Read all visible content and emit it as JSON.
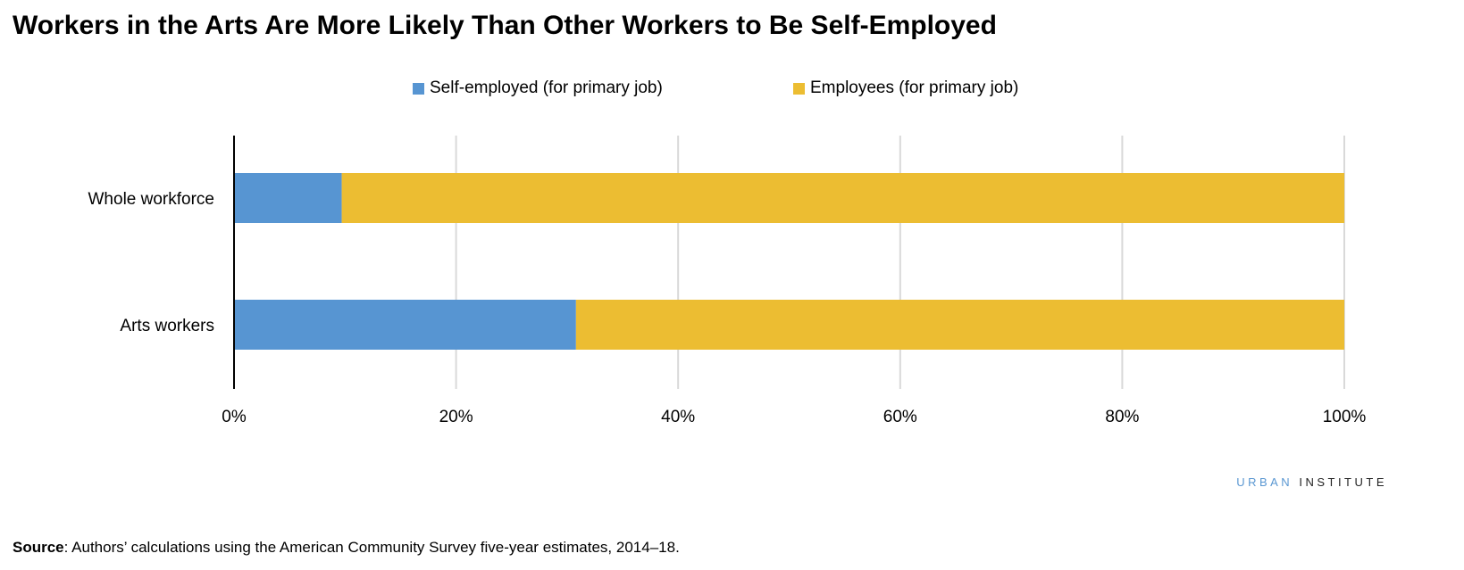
{
  "chart_data": {
    "type": "bar",
    "orientation": "horizontal",
    "stacked": true,
    "title": "Workers in the Arts Are More Likely Than Other Workers to Be Self-Employed",
    "categories": [
      "Whole workforce",
      "Arts workers"
    ],
    "series": [
      {
        "name": "Self-employed (for primary job)",
        "values": [
          9.7,
          30.8
        ],
        "color": "#5795d2"
      },
      {
        "name": "Employees (for primary job)",
        "values": [
          90.3,
          69.2
        ],
        "color": "#ecbd32"
      }
    ],
    "xlim": [
      0,
      100
    ],
    "xticks": [
      "0%",
      "20%",
      "40%",
      "60%",
      "80%",
      "100%"
    ],
    "grid": true,
    "legend": "top"
  },
  "brand": {
    "part1": "URBAN",
    "part2": "INSTITUTE"
  },
  "source": {
    "label": "Source",
    "text": ": Authors’ calculations using the American Community Survey five-year estimates, 2014–18."
  }
}
